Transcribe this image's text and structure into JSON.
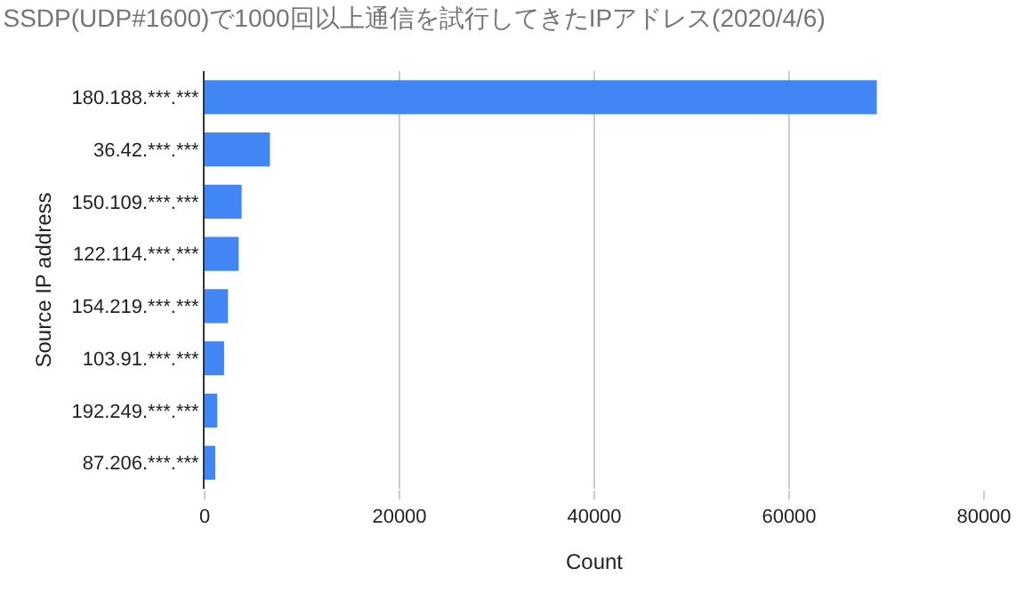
{
  "chart_data": {
    "type": "bar",
    "orientation": "horizontal",
    "title": "SSDP(UDP#1600)で1000回以上通信を試行してきたIPアドレス(2020/4/6)",
    "xlabel": "Count",
    "ylabel": "Source IP address",
    "categories": [
      "180.188.***.***",
      "36.42.***.***",
      "150.109.***.***",
      "122.114.***.***",
      "154.219.***.***",
      "103.91.***.***",
      "192.249.***.***",
      "87.206.***.***"
    ],
    "values": [
      69000,
      6700,
      3800,
      3500,
      2400,
      2000,
      1300,
      1100
    ],
    "color": "#4285f4",
    "xlim": [
      0,
      80000
    ],
    "xticks": [
      0,
      20000,
      40000,
      60000,
      80000
    ],
    "grid": "x"
  }
}
